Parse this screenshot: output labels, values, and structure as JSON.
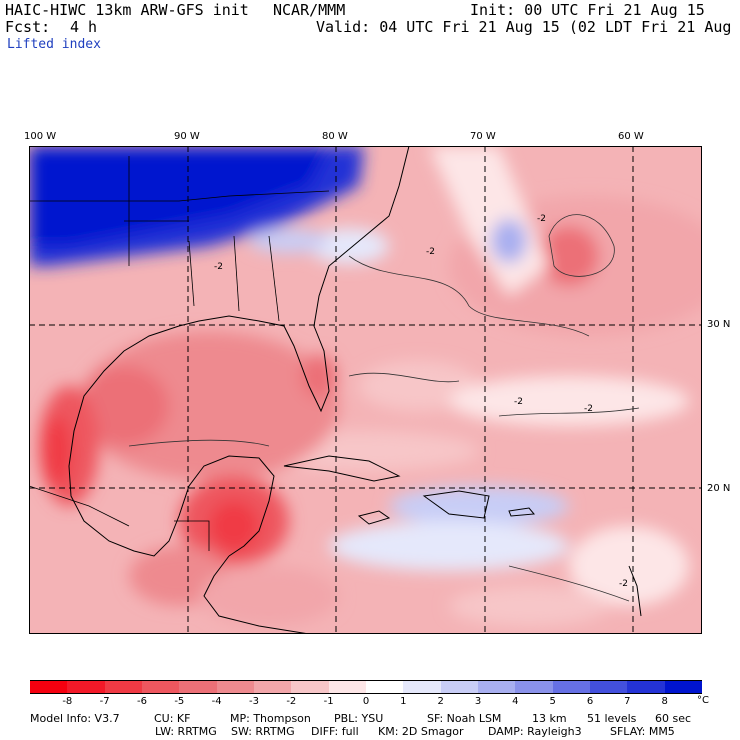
{
  "header": {
    "model_title": "HAIC-HIWC 13km ARW-GFS init",
    "org": "NCAR/MMM",
    "init": "Init: 00 UTC Fri 21 Aug 15",
    "fcst_label": "Fcst:",
    "fcst_value": "4 h",
    "valid": "Valid: 04 UTC Fri 21 Aug 15 (02 LDT Fri 21 Aug 15)",
    "field": "Lifted index"
  },
  "map": {
    "lon_labels": [
      "100 W",
      "90 W",
      "80 W",
      "70 W",
      "60 W"
    ],
    "lat_labels": [
      "30 N",
      "20 N"
    ],
    "contour_labels": [
      "-2",
      "-2",
      "-2",
      "-2",
      "-2",
      "-2"
    ]
  },
  "colorbar": {
    "ticks": [
      "-8",
      "-7",
      "-6",
      "-5",
      "-4",
      "-3",
      "-2",
      "-1",
      "0",
      "1",
      "2",
      "3",
      "4",
      "5",
      "6",
      "7",
      "8"
    ],
    "unit": "°C",
    "colors": [
      "#f5000f",
      "#f31928",
      "#f03a44",
      "#ee575f",
      "#ec7077",
      "#ee8a8f",
      "#f2a6aa",
      "#f7c6c8",
      "#fde6e7",
      "#ffffff",
      "#e5e8fb",
      "#c8cdf6",
      "#a8aff0",
      "#8a92ea",
      "#6670e4",
      "#4350dd",
      "#2433d6",
      "#0014cf"
    ]
  },
  "footer": {
    "line1": [
      "Model Info: V3.7",
      "CU: KF",
      "MP: Thompson",
      "PBL: YSU",
      "SF: Noah LSM",
      "13 km",
      "51 levels",
      "60 sec"
    ],
    "line2": [
      "LW: RRTMG",
      "SW: RRTMG",
      "DIFF: full",
      "KM: 2D Smagor",
      "DAMP: Rayleigh3",
      "SFLAY: MM5"
    ]
  }
}
